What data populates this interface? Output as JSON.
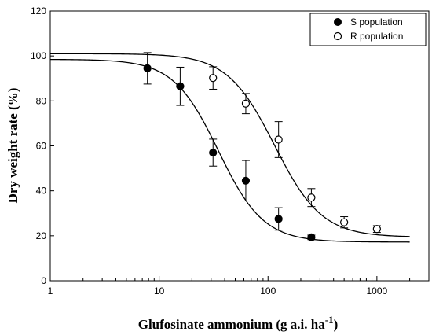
{
  "chart_data": {
    "type": "scatter",
    "xlabel": "Glufosinate ammonium (g a.i. ha",
    "xlabel_sup": "-1",
    "xlabel_close": ")",
    "ylabel": "Dry weight rate (%)",
    "xscale": "log",
    "xlim": [
      1,
      3000
    ],
    "ylim": [
      0,
      120
    ],
    "xticks": [
      1,
      10,
      100,
      1000
    ],
    "xtick_labels": [
      "1",
      "10",
      "100",
      "1000"
    ],
    "yticks": [
      0,
      20,
      40,
      60,
      80,
      100,
      120
    ],
    "ytick_labels": [
      "0",
      "20",
      "40",
      "60",
      "80",
      "100",
      "120"
    ],
    "grid": false,
    "legend_position": "top-right",
    "series": [
      {
        "name": "S population",
        "marker": "filled-circle",
        "x": [
          7.8,
          15.6,
          31.25,
          62.5,
          125,
          250
        ],
        "y": [
          94.5,
          86.5,
          57,
          44.5,
          27.5,
          19.3
        ],
        "err": [
          7,
          8.5,
          6,
          9,
          5,
          1
        ],
        "fit": {
          "top": 98.5,
          "bottom": 17.2,
          "ed50": 35,
          "slope": 2.1,
          "xmin": 1,
          "xmax": 2000
        }
      },
      {
        "name": "R population",
        "marker": "open-circle",
        "x": [
          31.25,
          62.5,
          125,
          250,
          500,
          1000
        ],
        "y": [
          90.2,
          78.8,
          62.8,
          37,
          26,
          23
        ],
        "err": [
          5,
          4.5,
          8,
          4,
          2.5,
          1.5
        ],
        "fit": {
          "top": 101,
          "bottom": 19.4,
          "ed50": 115,
          "slope": 2.0,
          "xmin": 1,
          "xmax": 2000
        }
      }
    ]
  }
}
